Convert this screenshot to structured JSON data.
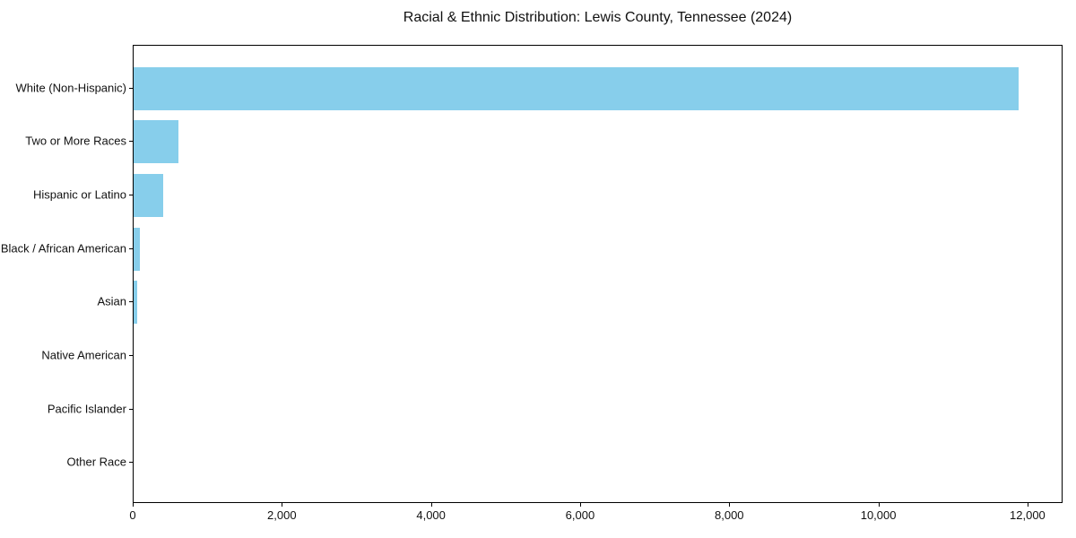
{
  "title": "Racial & Ethnic Distribution: Lewis County, Tennessee (2024)",
  "chart_data": {
    "type": "bar",
    "orientation": "horizontal",
    "title": "Racial & Ethnic Distribution: Lewis County, Tennessee (2024)",
    "categories": [
      "White (Non-Hispanic)",
      "Two or More Races",
      "Hispanic or Latino",
      "Black / African American",
      "Asian",
      "Native American",
      "Pacific Islander",
      "Other Race"
    ],
    "values": [
      11870,
      600,
      400,
      90,
      45,
      0,
      0,
      0
    ],
    "xlabel": "",
    "ylabel": "",
    "xlim": [
      0,
      12470
    ],
    "x_ticks": [
      {
        "value": 0,
        "label": "0"
      },
      {
        "value": 2000,
        "label": "2,000"
      },
      {
        "value": 4000,
        "label": "4,000"
      },
      {
        "value": 6000,
        "label": "6,000"
      },
      {
        "value": 8000,
        "label": "8,000"
      },
      {
        "value": 10000,
        "label": "10,000"
      },
      {
        "value": 12000,
        "label": "12,000"
      }
    ],
    "bar_color": "#87CEEB",
    "background_color": "#FFFFFF",
    "axis_color": "#000000",
    "grid": false,
    "legend": "none"
  }
}
